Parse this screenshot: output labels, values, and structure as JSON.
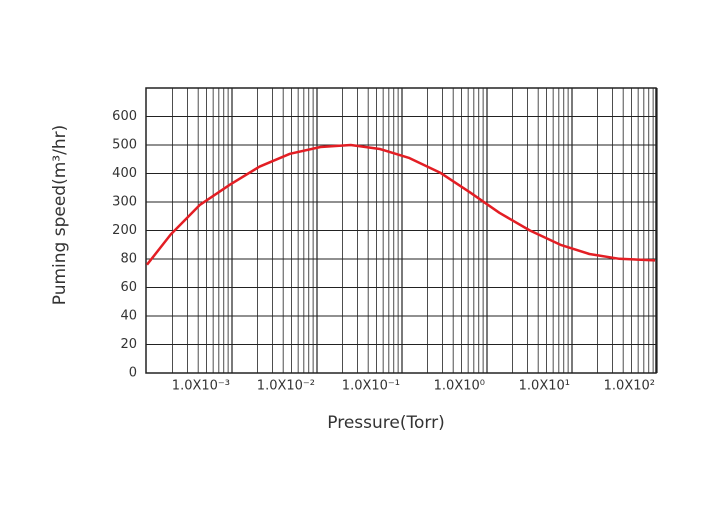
{
  "chart_data": {
    "type": "line",
    "x_label": "Pressure(Torr)",
    "y_label": "Puming speed(m³/hr)",
    "x_scale": "log",
    "color": "#e31e24",
    "x": [
      0.0001,
      0.00019,
      0.00042,
      0.00095,
      0.0021,
      0.0048,
      0.011,
      0.025,
      0.055,
      0.12,
      0.28,
      0.63,
      1.4,
      3.2,
      7.3,
      16,
      36,
      95
    ],
    "values": [
      76,
      183,
      290,
      361,
      424,
      469,
      493,
      500,
      486,
      455,
      403,
      334,
      262,
      200,
      140,
      101,
      81,
      79
    ],
    "xlim": [
      0.0001,
      100
    ],
    "xticks": [
      {
        "value": 0.001,
        "label": "1.0X10⁻³"
      },
      {
        "value": 0.01,
        "label": "1.0X10⁻²"
      },
      {
        "value": 0.1,
        "label": "1.0X10⁻¹"
      },
      {
        "value": 1,
        "label": "1.0X10⁰"
      },
      {
        "value": 10,
        "label": "1.0X10¹"
      },
      {
        "value": 100,
        "label": "1.0X10²"
      }
    ],
    "xgrid_minor": [
      0.0002,
      0.0003,
      0.0004,
      0.0005,
      0.0006,
      0.0007,
      0.0008,
      0.0009,
      0.002,
      0.003,
      0.004,
      0.005,
      0.006,
      0.007,
      0.008,
      0.009,
      0.02,
      0.03,
      0.04,
      0.05,
      0.06,
      0.07,
      0.08,
      0.09,
      0.2,
      0.3,
      0.4,
      0.5,
      0.6,
      0.7,
      0.8,
      0.9,
      2,
      3,
      4,
      5,
      6,
      7,
      8,
      9,
      20,
      30,
      40,
      50,
      60,
      70,
      80,
      90
    ],
    "ylim": [
      0,
      700
    ],
    "yticks": [
      0,
      20,
      40,
      60,
      80,
      200,
      300,
      400,
      500,
      600
    ],
    "grid": true
  }
}
